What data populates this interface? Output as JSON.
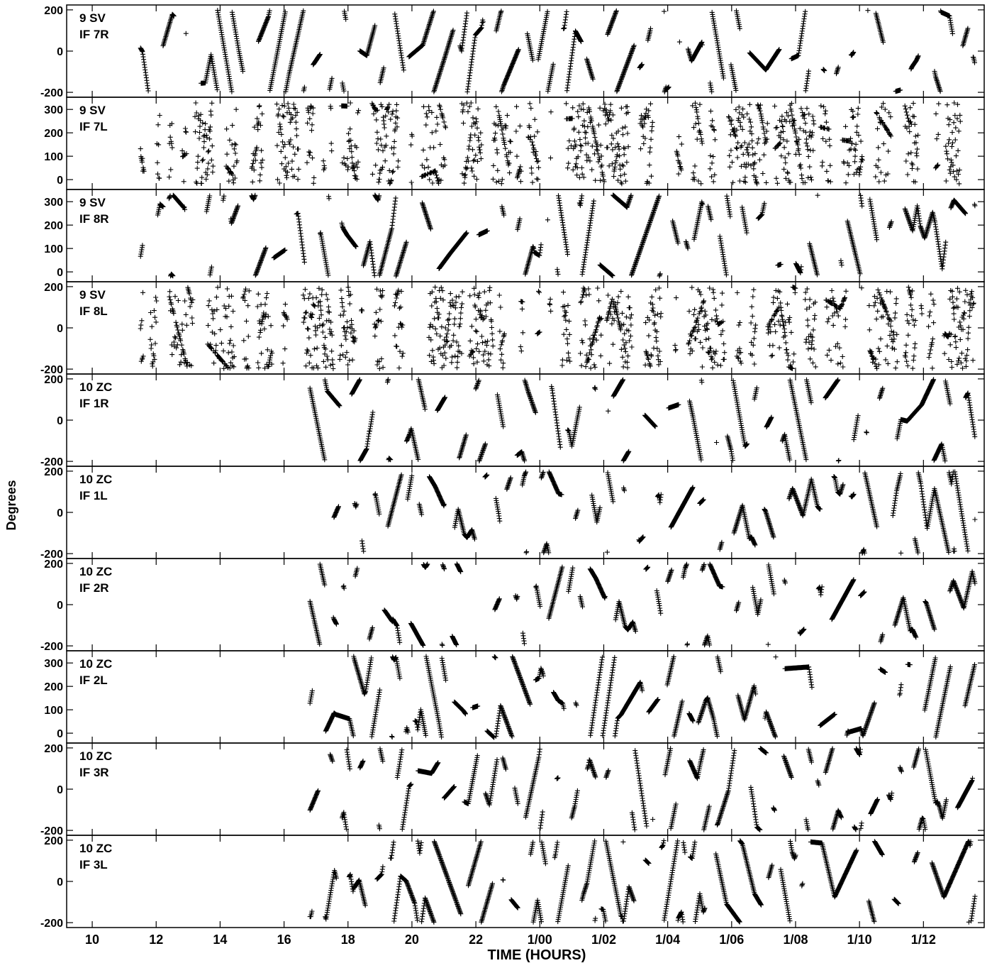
{
  "chart_data": {
    "type": "scatter",
    "ylabel": "Degrees",
    "xlabel": "TIME (HOURS)",
    "marker": "+",
    "color": "#000000",
    "x_range_hours": [
      9.2,
      37.9
    ],
    "x_ticks": [
      {
        "value": 10,
        "label": "10"
      },
      {
        "value": 12,
        "label": "12"
      },
      {
        "value": 14,
        "label": "14"
      },
      {
        "value": 16,
        "label": "16"
      },
      {
        "value": 18,
        "label": "18"
      },
      {
        "value": 20,
        "label": "20"
      },
      {
        "value": 22,
        "label": "22"
      },
      {
        "value": 24,
        "label": "1/00"
      },
      {
        "value": 26,
        "label": "1/02"
      },
      {
        "value": 28,
        "label": "1/04"
      },
      {
        "value": 30,
        "label": "1/06"
      },
      {
        "value": 32,
        "label": "1/08"
      },
      {
        "value": 34,
        "label": "1/10"
      },
      {
        "value": 36,
        "label": "1/12"
      }
    ],
    "panels": [
      {
        "source": "9 SV",
        "if": "IF 7R",
        "ylim": [
          -210,
          210
        ],
        "yticks": [
          -200,
          0,
          200
        ],
        "time_range": [
          11.5,
          37.6
        ],
        "mode": "wrap",
        "seed": 1
      },
      {
        "source": "9 SV",
        "if": "IF 7L",
        "ylim": [
          -30,
          340
        ],
        "yticks": [
          0,
          100,
          200,
          300
        ],
        "time_range": [
          11.5,
          37.6
        ],
        "mode": "noise",
        "seed": 2
      },
      {
        "source": "9 SV",
        "if": "IF 8R",
        "ylim": [
          -30,
          340
        ],
        "yticks": [
          0,
          100,
          200,
          300
        ],
        "time_range": [
          11.5,
          37.6
        ],
        "mode": "wrap",
        "seed": 3
      },
      {
        "source": "9 SV",
        "if": "IF 8L",
        "ylim": [
          -210,
          210
        ],
        "yticks": [
          -200,
          0,
          200
        ],
        "time_range": [
          11.5,
          37.6
        ],
        "mode": "noise",
        "seed": 4
      },
      {
        "source": "10 ZC",
        "if": "IF 1R",
        "ylim": [
          -210,
          210
        ],
        "yticks": [
          -200,
          0,
          200
        ],
        "time_range": [
          16.8,
          37.6
        ],
        "mode": "wrap",
        "seed": 5
      },
      {
        "source": "10 ZC",
        "if": "IF 1L",
        "ylim": [
          -210,
          210
        ],
        "yticks": [
          -200,
          0,
          200
        ],
        "time_range": [
          16.8,
          37.6
        ],
        "mode": "wrap",
        "seed": 6
      },
      {
        "source": "10 ZC",
        "if": "IF 2R",
        "ylim": [
          -210,
          210
        ],
        "yticks": [
          -200,
          0,
          200
        ],
        "time_range": [
          16.8,
          37.6
        ],
        "mode": "wrap",
        "seed": 7
      },
      {
        "source": "10 ZC",
        "if": "IF 2L",
        "ylim": [
          -30,
          340
        ],
        "yticks": [
          0,
          100,
          200,
          300
        ],
        "time_range": [
          16.8,
          37.6
        ],
        "mode": "wrap",
        "seed": 8
      },
      {
        "source": "10 ZC",
        "if": "IF 3R",
        "ylim": [
          -210,
          210
        ],
        "yticks": [
          -200,
          0,
          200
        ],
        "time_range": [
          16.8,
          37.6
        ],
        "mode": "wrap",
        "seed": 9
      },
      {
        "source": "10 ZC",
        "if": "IF 3L",
        "ylim": [
          -210,
          210
        ],
        "yticks": [
          -200,
          0,
          200
        ],
        "time_range": [
          16.8,
          37.6
        ],
        "mode": "wrap",
        "seed": 10
      }
    ]
  }
}
